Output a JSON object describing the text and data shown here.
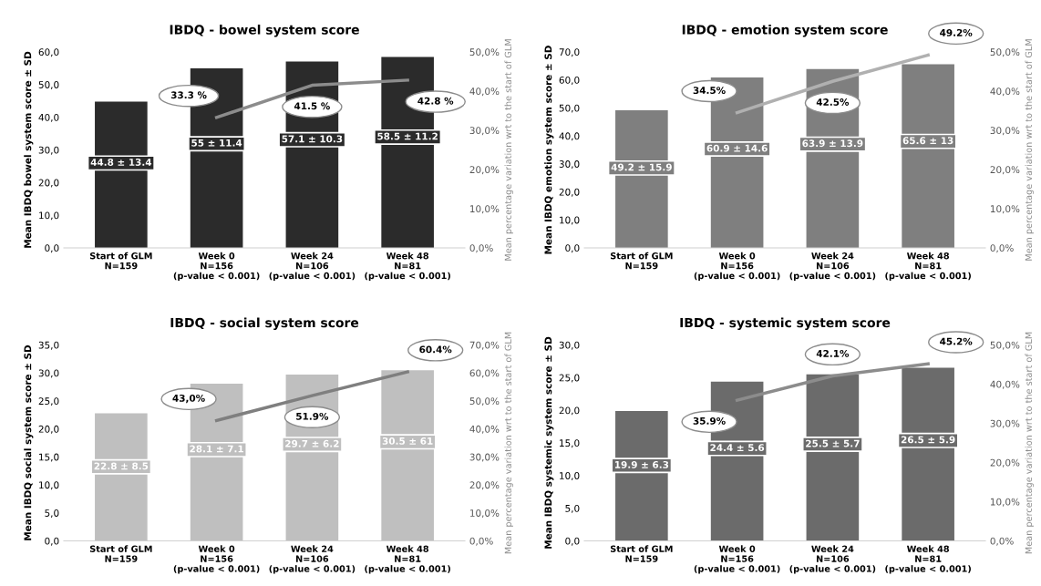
{
  "chart_data": [
    {
      "type": "bar",
      "title": "IBDQ - bowel system score",
      "ylabel": "Mean IBDQ bowel system score ± SD",
      "y2label": "Mean percentage variation wrt to the start of GLM",
      "categories": [
        "Start of GLM\nN=159",
        "Week 0\nN=156\n(p-value < 0.001)",
        "Week 24\nN=106\n(p-value < 0.001)",
        "Week 48\nN=81\n(p-value < 0.001)"
      ],
      "series": [
        {
          "color": "#2b2b2b",
          "values": [
            44.8,
            55,
            57.1,
            58.5
          ],
          "value_labels": [
            "44.8 ± 13.4",
            "55 ± 11.4",
            "57.1 ± 10.3",
            "58.5 ± 11.2"
          ]
        },
        {
          "type": "line",
          "axis": "y2",
          "color": "#8c8c8c",
          "values": [
            null,
            33.3,
            41.5,
            42.8
          ],
          "value_labels": [
            null,
            "33.3 %",
            "41.5 %",
            "42.8 %"
          ]
        }
      ],
      "ylim": [
        0,
        60
      ],
      "yticks": [
        {
          "value": 0,
          "label": "0,0"
        },
        {
          "value": 10,
          "label": "10,0"
        },
        {
          "value": 20,
          "label": "20,0"
        },
        {
          "value": 30,
          "label": "30,0"
        },
        {
          "value": 40,
          "label": "40,0"
        },
        {
          "value": 50,
          "label": "50,0"
        },
        {
          "value": 60,
          "label": "60,0"
        }
      ],
      "y2lim": [
        0,
        50
      ],
      "y2ticks": [
        {
          "value": 0,
          "label": "0,0%"
        },
        {
          "value": 10,
          "label": "10,0%"
        },
        {
          "value": 20,
          "label": "20,0%"
        },
        {
          "value": 30,
          "label": "30,0%"
        },
        {
          "value": 40,
          "label": "40,0%"
        },
        {
          "value": 50,
          "label": "50,0%"
        }
      ],
      "grid": false,
      "legend": false
    },
    {
      "type": "bar",
      "title": "IBDQ - emotion system score",
      "ylabel": "Mean IBDQ emotion system score ± SD",
      "y2label": "Mean percentage variation wrt to the start of GLM",
      "categories": [
        "Start of GLM\nN=159",
        "Week 0\nN=156\n(p-value < 0.001)",
        "Week 24\nN=106\n(p-value < 0.001)",
        "Week 48\nN=81\n(p-value < 0.001)"
      ],
      "series": [
        {
          "color": "#7f7f7f",
          "values": [
            49.2,
            60.9,
            63.9,
            65.6
          ],
          "value_labels": [
            "49.2 ± 15.9",
            "60.9 ± 14.6",
            "63.9 ± 13.9",
            "65.6 ± 13"
          ]
        },
        {
          "type": "line",
          "axis": "y2",
          "color": "#b0b0b0",
          "values": [
            null,
            34.5,
            42.5,
            49.2
          ],
          "value_labels": [
            null,
            "34.5%",
            "42.5%",
            "49.2%"
          ]
        }
      ],
      "ylim": [
        0,
        70
      ],
      "yticks": [
        {
          "value": 0,
          "label": "0,0"
        },
        {
          "value": 10,
          "label": "10,0"
        },
        {
          "value": 20,
          "label": "20,0"
        },
        {
          "value": 30,
          "label": "30,0"
        },
        {
          "value": 40,
          "label": "40,0"
        },
        {
          "value": 50,
          "label": "50,0"
        },
        {
          "value": 60,
          "label": "60,0"
        },
        {
          "value": 70,
          "label": "70,0"
        }
      ],
      "y2lim": [
        0,
        50
      ],
      "y2ticks": [
        {
          "value": 0,
          "label": "0,0%"
        },
        {
          "value": 10,
          "label": "10,0%"
        },
        {
          "value": 20,
          "label": "20,0%"
        },
        {
          "value": 30,
          "label": "30,0%"
        },
        {
          "value": 40,
          "label": "40,0%"
        },
        {
          "value": 50,
          "label": "50,0%"
        }
      ],
      "grid": false,
      "legend": false
    },
    {
      "type": "bar",
      "title": "IBDQ - social system score",
      "ylabel": "Mean IBDQ social system score ± SD",
      "y2label": "Mean percentage variation wrt to the start of GLM",
      "categories": [
        "Start of GLM\nN=159",
        "Week 0\nN=156\n(p-value < 0.001)",
        "Week 24\nN=106\n(p-value < 0.001)",
        "Week 48\nN=81\n(p-value < 0.001)"
      ],
      "series": [
        {
          "color": "#bfbfbf",
          "values": [
            22.8,
            28.1,
            29.7,
            30.5
          ],
          "value_labels": [
            "22.8 ± 8.5",
            "28.1 ± 7.1",
            "29.7 ± 6.2",
            "30.5 ± 61"
          ]
        },
        {
          "type": "line",
          "axis": "y2",
          "color": "#7f7f7f",
          "values": [
            null,
            43.0,
            51.9,
            60.4
          ],
          "value_labels": [
            null,
            "43,0%",
            "51.9%",
            "60.4%"
          ]
        }
      ],
      "ylim": [
        0,
        35
      ],
      "yticks": [
        {
          "value": 0,
          "label": "0,0"
        },
        {
          "value": 5,
          "label": "5,0"
        },
        {
          "value": 10,
          "label": "10,0"
        },
        {
          "value": 15,
          "label": "15,0"
        },
        {
          "value": 20,
          "label": "20,0"
        },
        {
          "value": 25,
          "label": "25,0"
        },
        {
          "value": 30,
          "label": "30,0"
        },
        {
          "value": 35,
          "label": "35,0"
        }
      ],
      "y2lim": [
        0,
        70
      ],
      "y2ticks": [
        {
          "value": 0,
          "label": "0,0%"
        },
        {
          "value": 10,
          "label": "10,0%"
        },
        {
          "value": 20,
          "label": "20,0%"
        },
        {
          "value": 30,
          "label": "30,0%"
        },
        {
          "value": 40,
          "label": "40,0%"
        },
        {
          "value": 50,
          "label": "50,0%"
        },
        {
          "value": 60,
          "label": "60,0%"
        },
        {
          "value": 70,
          "label": "70,0%"
        }
      ],
      "grid": false,
      "legend": false
    },
    {
      "type": "bar",
      "title": "IBDQ - systemic system score",
      "ylabel": "Mean IBDQ systemic system score ± SD",
      "y2label": "Mean percentage variation wrt to the start of GLM",
      "categories": [
        "Start of GLM\nN=159",
        "Week 0\nN=156\n(p-value < 0.001)",
        "Week 24\nN=106\n(p-value < 0.001)",
        "Week 48\nN=81\n(p-value < 0.001)"
      ],
      "series": [
        {
          "color": "#6b6b6b",
          "values": [
            19.9,
            24.4,
            25.5,
            26.5
          ],
          "value_labels": [
            "19.9 ± 6.3",
            "24.4 ± 5.6",
            "25.5 ± 5.7",
            "26.5 ± 5.9"
          ]
        },
        {
          "type": "line",
          "axis": "y2",
          "color": "#8c8c8c",
          "values": [
            null,
            35.9,
            42.1,
            45.2
          ],
          "value_labels": [
            null,
            "35.9%",
            "42.1%",
            "45.2%"
          ]
        }
      ],
      "ylim": [
        0,
        30
      ],
      "yticks": [
        {
          "value": 0,
          "label": "0,0"
        },
        {
          "value": 5,
          "label": "5,0"
        },
        {
          "value": 10,
          "label": "10,0"
        },
        {
          "value": 15,
          "label": "15,0"
        },
        {
          "value": 20,
          "label": "20,0"
        },
        {
          "value": 25,
          "label": "25,0"
        },
        {
          "value": 30,
          "label": "30,0"
        }
      ],
      "y2lim": [
        0,
        50
      ],
      "y2ticks": [
        {
          "value": 0,
          "label": "0,0%"
        },
        {
          "value": 10,
          "label": "10,0%"
        },
        {
          "value": 20,
          "label": "20,0%"
        },
        {
          "value": 30,
          "label": "30,0%"
        },
        {
          "value": 40,
          "label": "40,0%"
        },
        {
          "value": 50,
          "label": "50,0%"
        }
      ],
      "grid": false,
      "legend": false
    }
  ]
}
